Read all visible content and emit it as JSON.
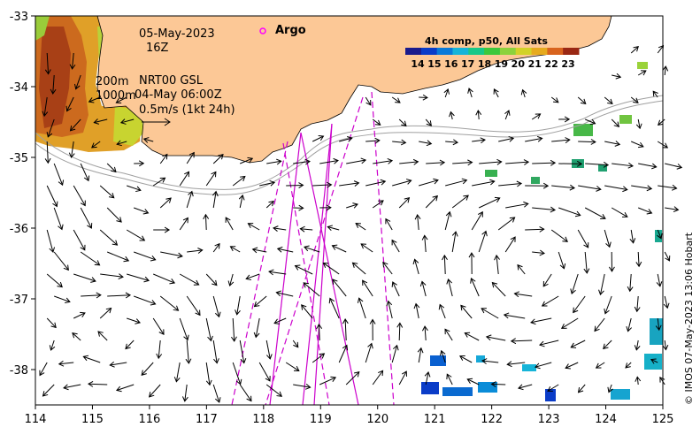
{
  "map": {
    "lon_ticks": [
      "114",
      "115",
      "116",
      "117",
      "118",
      "119",
      "120",
      "121",
      "122",
      "123",
      "124",
      "125"
    ],
    "lat_ticks": [
      "-33",
      "-34",
      "-35",
      "-36",
      "-37",
      "-38"
    ],
    "lon_range": [
      114,
      125
    ],
    "lat_range": [
      -38.5,
      -33
    ]
  },
  "info": {
    "date": "05-May-2023",
    "hour": "16Z",
    "depth1": "200m",
    "depth2": "1000m",
    "product": "NRT00 GSL",
    "product_time": "04-May 06:00Z",
    "scale_label": "0.5m/s (1kt 24h)"
  },
  "legend": {
    "argo_label": "Argo",
    "colorbar_title": "4h comp, p50, All Sats",
    "colorbar_ticks": [
      "14",
      "15",
      "16",
      "17",
      "18",
      "19",
      "20",
      "21",
      "22",
      "23"
    ],
    "colors": [
      "#1a1a8c",
      "#0a3cc8",
      "#0a7ad8",
      "#16b4d8",
      "#18c888",
      "#3cc83c",
      "#8cd23c",
      "#d2d228",
      "#e6aa1e",
      "#d8641e",
      "#9a2814"
    ]
  },
  "credit": "© IMOS 07-May-2023 13:06 Hobart",
  "colors": {
    "land": "#fcc896",
    "track": "#cc00cc",
    "argo": "#ff00ff"
  }
}
